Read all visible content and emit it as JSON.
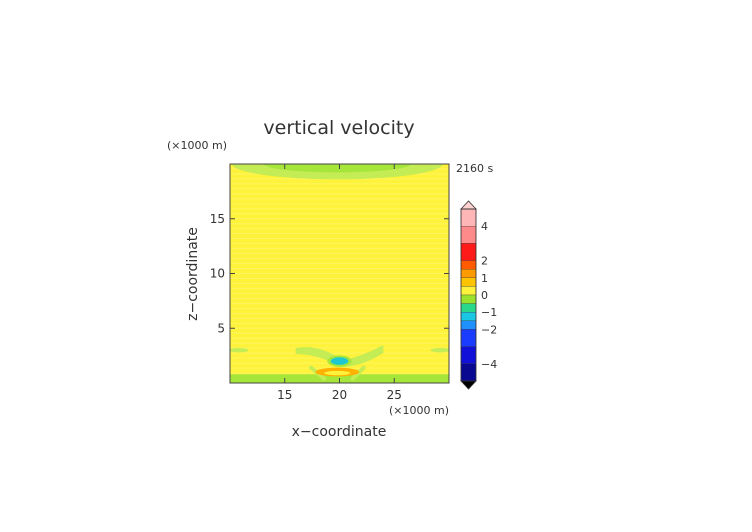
{
  "chart_data": {
    "type": "heatmap",
    "title": "vertical velocity",
    "xlabel": "x−coordinate",
    "ylabel": "z−coordinate",
    "x_unit": "(×1000 m)",
    "y_unit": "(×1000 m)",
    "time_label": "2160 s",
    "xlim": [
      10,
      30
    ],
    "ylim": [
      0,
      20
    ],
    "x_ticks": [
      15,
      20,
      25
    ],
    "y_ticks": [
      5,
      10,
      15
    ],
    "background_value": 0.3,
    "features": [
      {
        "kind": "upper_negative_band",
        "x": [
          19.8,
          9.6
        ],
        "z": [
          20.0,
          1.4
        ],
        "value": -0.25
      },
      {
        "kind": "low_level_green_band",
        "x": [
          10.0,
          30.0
        ],
        "z": [
          0.0,
          0.8
        ],
        "value": -0.2
      },
      {
        "kind": "wing_left",
        "x_start": 16.0,
        "x_end": 20.0,
        "z_start": 3.2,
        "z_end": 2.0,
        "value": -0.3
      },
      {
        "kind": "wing_right",
        "x_start": 20.0,
        "x_end": 24.0,
        "z_start": 2.0,
        "z_end": 3.2,
        "value": -0.3
      },
      {
        "kind": "side_patch_left",
        "x": [
          10.8,
          0.9
        ],
        "z": [
          3.0,
          0.2
        ],
        "value": -0.2
      },
      {
        "kind": "side_patch_right",
        "x": [
          29.2,
          0.9
        ],
        "z": [
          3.0,
          0.2
        ],
        "value": -0.2
      },
      {
        "kind": "downdraft_core",
        "x": [
          20.0,
          0.8
        ],
        "z": [
          2.0,
          0.35
        ],
        "value": -0.8
      },
      {
        "kind": "updraft_below",
        "x": [
          19.8,
          2.0
        ],
        "z": [
          1.0,
          0.4
        ],
        "value": 0.9
      }
    ],
    "colorbar": {
      "tick_labels": [
        "4",
        "2",
        "1",
        "0",
        "−1",
        "−2",
        "−4"
      ],
      "tick_values": [
        4,
        2,
        1,
        0,
        -1,
        -2,
        -4
      ],
      "levels": [
        {
          "lo": 4.0,
          "hi": 5.0,
          "color": "#ffb6b6"
        },
        {
          "lo": 3.0,
          "hi": 4.0,
          "color": "#ff8a8a"
        },
        {
          "lo": 2.0,
          "hi": 3.0,
          "color": "#ff1a1a"
        },
        {
          "lo": 1.5,
          "hi": 2.0,
          "color": "#ff5a00"
        },
        {
          "lo": 1.0,
          "hi": 1.5,
          "color": "#ff9a00"
        },
        {
          "lo": 0.5,
          "hi": 1.0,
          "color": "#ffc400"
        },
        {
          "lo": 0.0,
          "hi": 0.5,
          "color": "#fff23a"
        },
        {
          "lo": -0.5,
          "hi": 0.0,
          "color": "#9be22e"
        },
        {
          "lo": -1.0,
          "hi": -0.5,
          "color": "#2ad88c"
        },
        {
          "lo": -1.5,
          "hi": -1.0,
          "color": "#1ac8e6"
        },
        {
          "lo": -2.0,
          "hi": -1.5,
          "color": "#1e90ff"
        },
        {
          "lo": -3.0,
          "hi": -2.0,
          "color": "#1a3cff"
        },
        {
          "lo": -4.0,
          "hi": -3.0,
          "color": "#1010d8"
        },
        {
          "lo": -5.0,
          "hi": -4.0,
          "color": "#080890"
        }
      ],
      "extend_top_color": "#ffd0d0",
      "extend_bottom_color": "#000000"
    },
    "colors": {
      "field_yellow": "#fff23a",
      "field_yellow_light": "#fff56a",
      "green_region": "#a6e63a",
      "green_light": "#c4ec55",
      "orange": "#ffb000",
      "cyan": "#1ec8d0",
      "axis": "#444444",
      "text": "#333333"
    }
  }
}
